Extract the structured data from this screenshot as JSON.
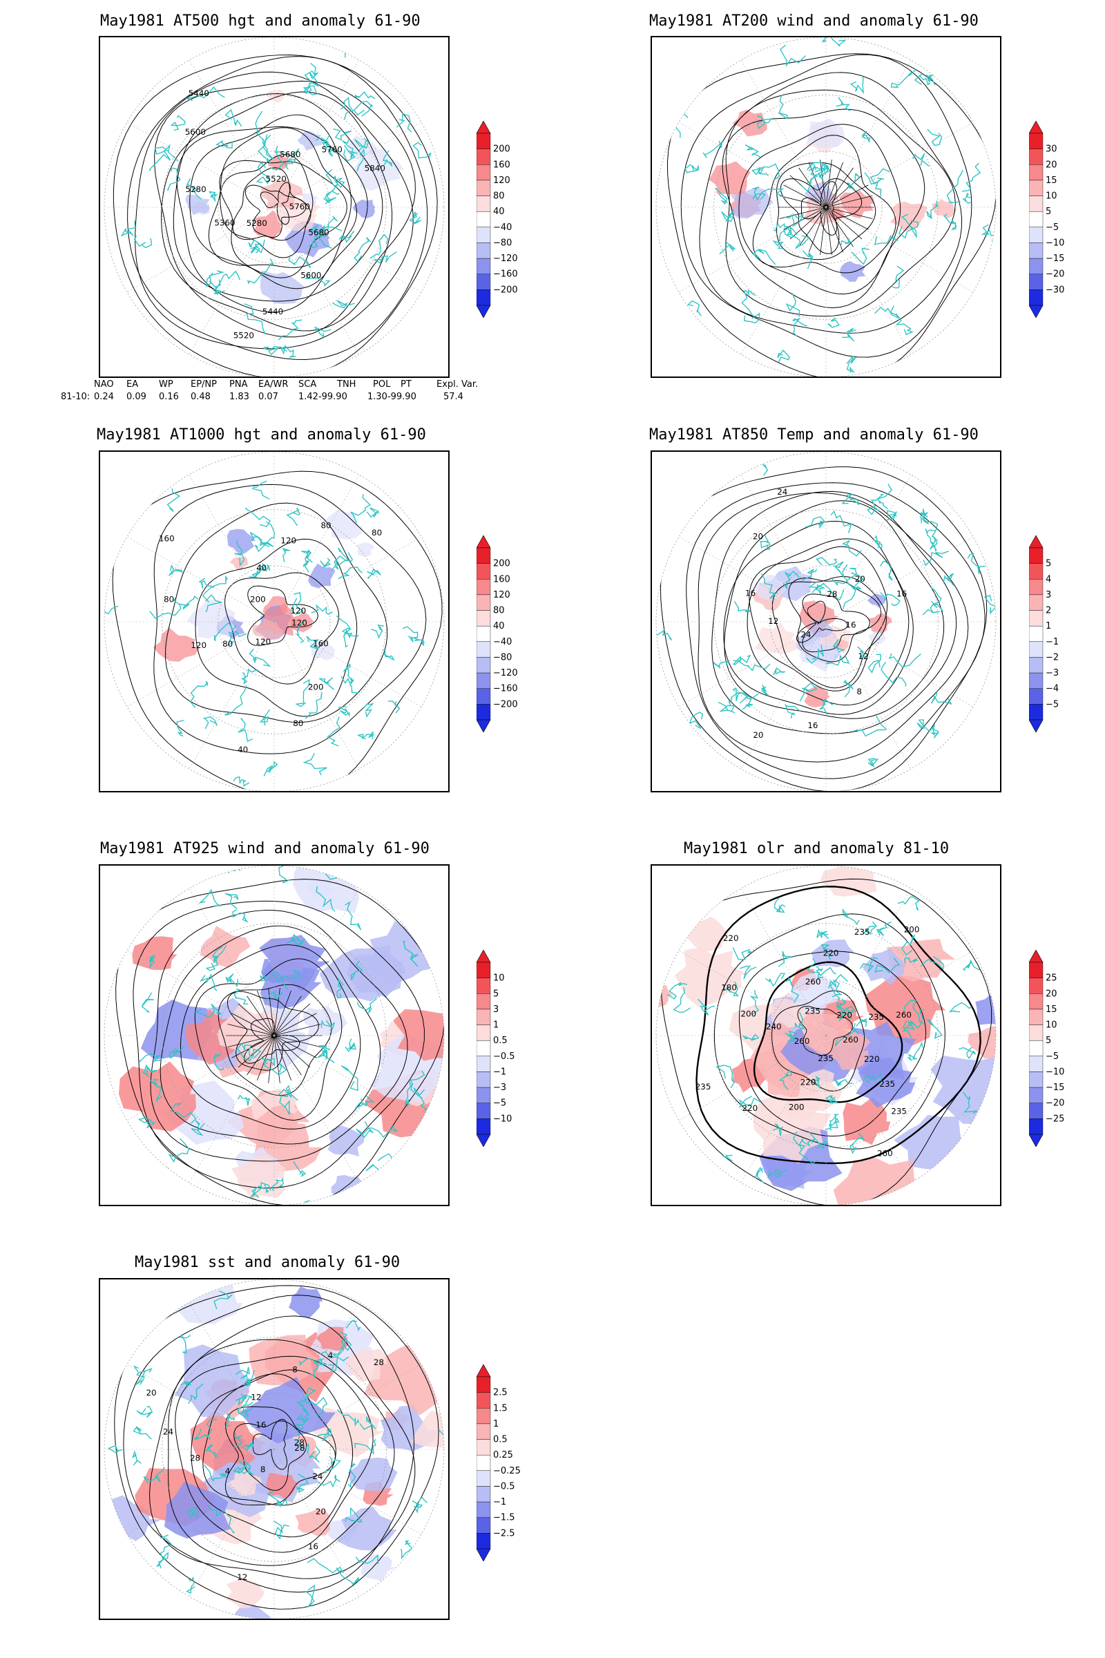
{
  "panels": [
    {
      "title": "May1981 AT500 hgt and anomaly 61-90",
      "contour_labels": [
        "5760",
        "5680",
        "5600",
        "5440",
        "5520",
        "5280",
        "5360",
        "5280",
        "5600",
        "5440",
        "5520",
        "5680",
        "5760",
        "5840"
      ],
      "colorbar": [
        "200",
        "160",
        "120",
        "80",
        "40",
        "−40",
        "−80",
        "−120",
        "−160",
        "−200"
      ]
    },
    {
      "title": "May1981 AT200 wind and anomaly 61-90",
      "contour_labels": [],
      "colorbar": [
        "30",
        "20",
        "15",
        "10",
        "5",
        "−5",
        "−10",
        "−15",
        "−20",
        "−30"
      ]
    },
    {
      "title": "May1981 AT1000 hgt and anomaly 61-90",
      "contour_labels": [
        "120",
        "160",
        "200",
        "80",
        "40",
        "120",
        "80",
        "120",
        "80",
        "160",
        "200",
        "40",
        "120",
        "80",
        "80",
        "120"
      ],
      "colorbar": [
        "200",
        "160",
        "120",
        "80",
        "40",
        "−40",
        "−80",
        "−120",
        "−160",
        "−200"
      ]
    },
    {
      "title": "May1981 AT850 Temp and anomaly 61-90",
      "contour_labels": [
        "16",
        "12",
        "8",
        "16",
        "20",
        "24",
        "12",
        "16",
        "20",
        "24",
        "28",
        "20",
        "16"
      ],
      "colorbar": [
        "5",
        "4",
        "3",
        "2",
        "1",
        "−1",
        "−2",
        "−3",
        "−4",
        "−5"
      ]
    },
    {
      "title": "May1981 AT925 wind and anomaly 61-90",
      "contour_labels": [],
      "colorbar": [
        "10",
        "5",
        "3",
        "1",
        "0.5",
        "−0.5",
        "−1",
        "−3",
        "−5",
        "−10"
      ]
    },
    {
      "title": "May1981 olr and anomaly 81-10",
      "contour_labels": [
        "260",
        "220",
        "235",
        "235",
        "260",
        "235",
        "220",
        "200",
        "220",
        "235",
        "260",
        "240",
        "200",
        "180",
        "220",
        "235",
        "260",
        "220",
        "235",
        "200",
        "220",
        "235",
        "260"
      ],
      "colorbar": [
        "25",
        "20",
        "15",
        "10",
        "5",
        "−5",
        "−10",
        "−15",
        "−20",
        "−25"
      ]
    },
    {
      "title": "May1981 sst and anomaly 61-90",
      "contour_labels": [
        "28",
        "24",
        "20",
        "16",
        "12",
        "8",
        "4",
        "28",
        "24",
        "20",
        "16",
        "12",
        "8",
        "4",
        "28",
        "28"
      ],
      "colorbar": [
        "2.5",
        "1.5",
        "1",
        "0.5",
        "0.25",
        "−0.25",
        "−0.5",
        "−1",
        "−1.5",
        "−2.5"
      ]
    }
  ],
  "index_table": {
    "headers": [
      "NAO",
      "EA",
      "WP",
      "EP/NP",
      "PNA",
      "EA/WR",
      "SCA",
      "TNH",
      "POL",
      "PT",
      "Expl. Var."
    ],
    "row_label": "81-10:",
    "values": [
      "0.24",
      "0.09",
      "0.16",
      "0.48",
      "1.83",
      "0.07",
      "1.42-99.90",
      "1.30-99.90",
      "57.4"
    ]
  },
  "colors": {
    "coastline": "#2ec4c4",
    "contour": "#000000",
    "pos_scale": [
      "#e8202a",
      "#f2545a",
      "#f7888b",
      "#fab4b5",
      "#fcdcdc"
    ],
    "neg_scale": [
      "#dfe2fb",
      "#b7bdf5",
      "#8c93ee",
      "#5a63e6",
      "#1c2be0"
    ]
  }
}
